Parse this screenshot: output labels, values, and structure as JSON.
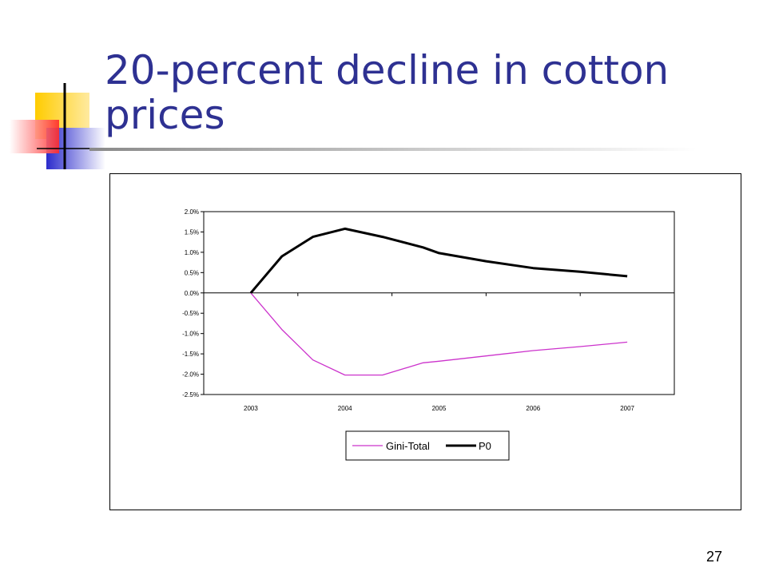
{
  "slide": {
    "title": "20-percent decline in cotton prices",
    "page_number": "27"
  },
  "colors": {
    "title": "#2e3192",
    "series_gini": "#cc33cc",
    "series_p0": "#000000",
    "deco_yellow": "#ffcc00",
    "deco_blue": "#3333cc",
    "deco_red": "#ff3333"
  },
  "chart_data": {
    "type": "line",
    "x": [
      2003,
      2003.33,
      2003.66,
      2004,
      2004.4,
      2004.83,
      2005,
      2005.5,
      2006,
      2006.5,
      2007
    ],
    "x_tick_labels": [
      "2003",
      "2004",
      "2005",
      "2006",
      "2007"
    ],
    "y_tick_labels": [
      "2.0%",
      "1.5%",
      "1.0%",
      "0.5%",
      "0.0%",
      "-0.5%",
      "-1.0%",
      "-1.5%",
      "-2.0%",
      "-2.5%"
    ],
    "ylim": [
      -0.025,
      0.02
    ],
    "series": [
      {
        "name": "Gini-Total",
        "values": [
          0.0,
          -0.009,
          -0.0165,
          -0.0202,
          -0.0202,
          -0.0172,
          -0.0168,
          -0.0155,
          -0.0142,
          -0.0132,
          -0.0121
        ]
      },
      {
        "name": "P0",
        "values": [
          0.0,
          0.009,
          0.0138,
          0.0158,
          0.0138,
          0.0112,
          0.0098,
          0.0078,
          0.0061,
          0.0052,
          0.0041
        ]
      }
    ],
    "legend_position": "bottom",
    "grid": false
  }
}
